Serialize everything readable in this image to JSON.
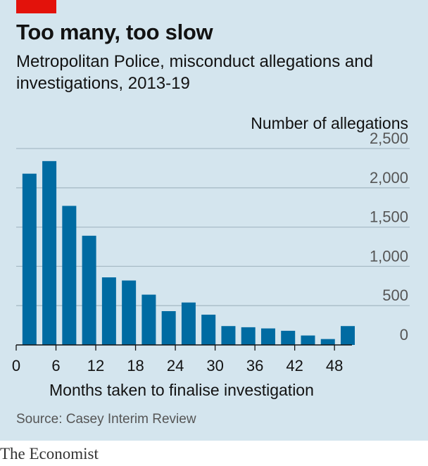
{
  "header": {
    "title": "Too many, too slow",
    "subtitle": "Metropolitan Police, misconduct allegations and investigations, 2013-19"
  },
  "source": "Source: Casey Interim Review",
  "brand": "The Economist",
  "colors": {
    "background": "#d4e5ee",
    "bar": "#006ba2",
    "accent": "#e3120b",
    "grid": "#a8bcc7"
  },
  "chart_data": {
    "type": "bar",
    "ylabel": "Number of allegations",
    "xlabel": "Months taken to finalise investigation",
    "x": [
      2,
      5,
      8,
      11,
      14,
      17,
      20,
      23,
      26,
      29,
      32,
      35,
      38,
      41,
      44,
      47,
      50
    ],
    "values": [
      2180,
      2340,
      1770,
      1390,
      860,
      820,
      640,
      430,
      540,
      385,
      240,
      225,
      210,
      180,
      120,
      75,
      240
    ],
    "ylim": [
      0,
      2500
    ],
    "yticks": [
      {
        "value": 0,
        "label": "0"
      },
      {
        "value": 500,
        "label": "500"
      },
      {
        "value": 1000,
        "label": "1,000"
      },
      {
        "value": 1500,
        "label": "1,500"
      },
      {
        "value": 2000,
        "label": "2,000"
      },
      {
        "value": 2500,
        "label": "2,500"
      }
    ],
    "xticks": [
      {
        "value": 0,
        "label": "0"
      },
      {
        "value": 6,
        "label": "6"
      },
      {
        "value": 12,
        "label": "12"
      },
      {
        "value": 18,
        "label": "18"
      },
      {
        "value": 24,
        "label": "24"
      },
      {
        "value": 30,
        "label": "30"
      },
      {
        "value": 36,
        "label": "36"
      },
      {
        "value": 42,
        "label": "42"
      },
      {
        "value": 48,
        "label": "48"
      }
    ],
    "grid": true
  }
}
